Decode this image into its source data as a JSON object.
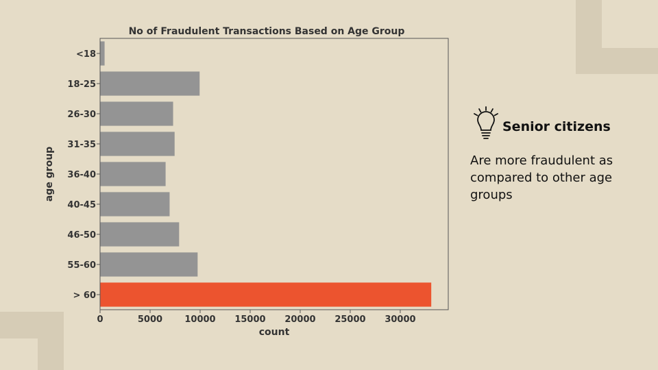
{
  "chart_data": {
    "type": "bar",
    "orientation": "horizontal",
    "title": "No of Fraudulent Transactions Based on Age Group",
    "xlabel": "count",
    "ylabel": "age group",
    "categories": [
      "<18",
      "18-25",
      "26-30",
      "31-35",
      "36-40",
      "40-45",
      "46-50",
      "55-60",
      "> 60"
    ],
    "values": [
      450,
      9950,
      7300,
      7450,
      6550,
      6950,
      7900,
      9750,
      33100
    ],
    "xlim": [
      0,
      34800
    ],
    "xticks": [
      0,
      5000,
      10000,
      15000,
      20000,
      25000,
      30000
    ],
    "grid": false,
    "bar_color": "#949494",
    "highlight_color": "#ec542f",
    "highlight_index": 8
  },
  "insight": {
    "icon": "lightbulb-icon",
    "title": "Senior citizens",
    "body": "Are more fraudulent as compared to other age groups"
  }
}
